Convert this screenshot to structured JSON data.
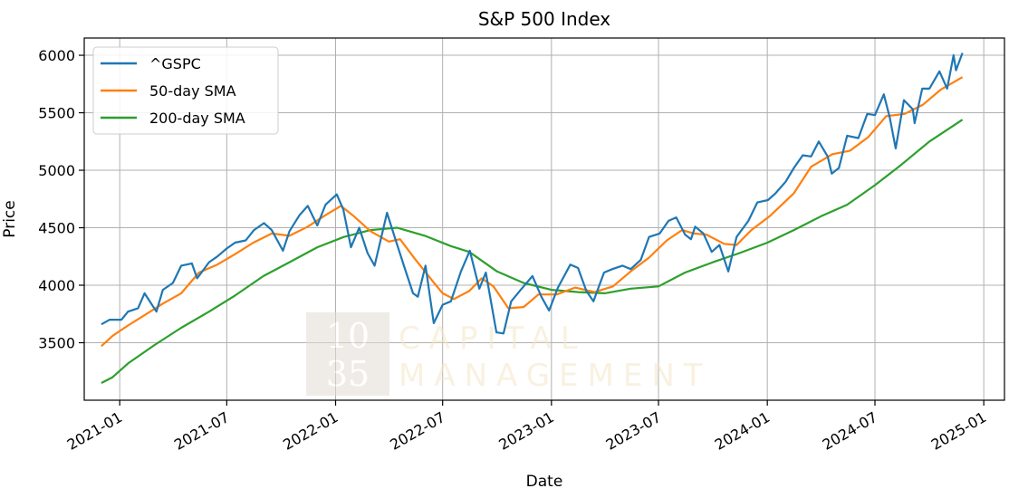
{
  "chart_data": {
    "type": "line",
    "title": "S&P 500 Index",
    "xlabel": "Date",
    "ylabel": "Price",
    "xlim": [
      "2020-11-02",
      "2025-02-05"
    ],
    "ylim": [
      3000,
      6150
    ],
    "yticks": [
      3500,
      4000,
      4500,
      5000,
      5500,
      6000
    ],
    "xticks": [
      "2021-01",
      "2021-07",
      "2022-01",
      "2022-07",
      "2023-01",
      "2023-07",
      "2024-01",
      "2024-07",
      "2025-01"
    ],
    "grid": true,
    "legend": "top-left",
    "series": [
      {
        "name": "^GSPC",
        "color": "#1f77b4",
        "points": [
          [
            "2020-12-01",
            3660
          ],
          [
            "2020-12-15",
            3700
          ],
          [
            "2021-01-04",
            3700
          ],
          [
            "2021-01-15",
            3770
          ],
          [
            "2021-02-01",
            3800
          ],
          [
            "2021-02-12",
            3930
          ],
          [
            "2021-03-04",
            3770
          ],
          [
            "2021-03-15",
            3960
          ],
          [
            "2021-04-01",
            4020
          ],
          [
            "2021-04-15",
            4170
          ],
          [
            "2021-05-03",
            4190
          ],
          [
            "2021-05-12",
            4060
          ],
          [
            "2021-06-01",
            4200
          ],
          [
            "2021-06-15",
            4250
          ],
          [
            "2021-07-01",
            4320
          ],
          [
            "2021-07-15",
            4370
          ],
          [
            "2021-08-02",
            4390
          ],
          [
            "2021-08-16",
            4480
          ],
          [
            "2021-09-02",
            4540
          ],
          [
            "2021-09-15",
            4480
          ],
          [
            "2021-10-04",
            4300
          ],
          [
            "2021-10-15",
            4470
          ],
          [
            "2021-11-01",
            4610
          ],
          [
            "2021-11-15",
            4690
          ],
          [
            "2021-12-01",
            4520
          ],
          [
            "2021-12-15",
            4700
          ],
          [
            "2022-01-03",
            4790
          ],
          [
            "2022-01-14",
            4660
          ],
          [
            "2022-01-27",
            4330
          ],
          [
            "2022-02-10",
            4500
          ],
          [
            "2022-02-24",
            4280
          ],
          [
            "2022-03-08",
            4170
          ],
          [
            "2022-03-29",
            4630
          ],
          [
            "2022-04-12",
            4400
          ],
          [
            "2022-04-29",
            4130
          ],
          [
            "2022-05-12",
            3930
          ],
          [
            "2022-05-20",
            3900
          ],
          [
            "2022-06-02",
            4170
          ],
          [
            "2022-06-16",
            3670
          ],
          [
            "2022-07-01",
            3830
          ],
          [
            "2022-07-15",
            3860
          ],
          [
            "2022-08-01",
            4120
          ],
          [
            "2022-08-16",
            4300
          ],
          [
            "2022-09-01",
            3970
          ],
          [
            "2022-09-12",
            4110
          ],
          [
            "2022-09-30",
            3590
          ],
          [
            "2022-10-12",
            3580
          ],
          [
            "2022-10-25",
            3860
          ],
          [
            "2022-11-10",
            3960
          ],
          [
            "2022-11-30",
            4080
          ],
          [
            "2022-12-15",
            3900
          ],
          [
            "2022-12-28",
            3780
          ],
          [
            "2023-01-12",
            3980
          ],
          [
            "2023-02-02",
            4180
          ],
          [
            "2023-02-15",
            4150
          ],
          [
            "2023-03-01",
            3950
          ],
          [
            "2023-03-13",
            3860
          ],
          [
            "2023-03-31",
            4110
          ],
          [
            "2023-04-14",
            4140
          ],
          [
            "2023-05-01",
            4170
          ],
          [
            "2023-05-15",
            4140
          ],
          [
            "2023-06-01",
            4220
          ],
          [
            "2023-06-15",
            4420
          ],
          [
            "2023-07-03",
            4450
          ],
          [
            "2023-07-18",
            4560
          ],
          [
            "2023-07-31",
            4590
          ],
          [
            "2023-08-15",
            4440
          ],
          [
            "2023-08-25",
            4400
          ],
          [
            "2023-09-01",
            4510
          ],
          [
            "2023-09-15",
            4450
          ],
          [
            "2023-09-29",
            4290
          ],
          [
            "2023-10-12",
            4350
          ],
          [
            "2023-10-27",
            4120
          ],
          [
            "2023-11-10",
            4420
          ],
          [
            "2023-11-30",
            4560
          ],
          [
            "2023-12-15",
            4720
          ],
          [
            "2024-01-02",
            4740
          ],
          [
            "2024-01-15",
            4800
          ],
          [
            "2024-02-01",
            4900
          ],
          [
            "2024-02-15",
            5020
          ],
          [
            "2024-03-01",
            5130
          ],
          [
            "2024-03-15",
            5120
          ],
          [
            "2024-03-28",
            5250
          ],
          [
            "2024-04-12",
            5120
          ],
          [
            "2024-04-19",
            4970
          ],
          [
            "2024-05-01",
            5020
          ],
          [
            "2024-05-15",
            5300
          ],
          [
            "2024-06-03",
            5280
          ],
          [
            "2024-06-18",
            5490
          ],
          [
            "2024-07-01",
            5480
          ],
          [
            "2024-07-16",
            5660
          ],
          [
            "2024-07-26",
            5460
          ],
          [
            "2024-08-05",
            5190
          ],
          [
            "2024-08-19",
            5610
          ],
          [
            "2024-09-03",
            5530
          ],
          [
            "2024-09-06",
            5410
          ],
          [
            "2024-09-19",
            5710
          ],
          [
            "2024-10-01",
            5710
          ],
          [
            "2024-10-18",
            5860
          ],
          [
            "2024-10-31",
            5710
          ],
          [
            "2024-11-11",
            6000
          ],
          [
            "2024-11-15",
            5870
          ],
          [
            "2024-11-26",
            6020
          ]
        ]
      },
      {
        "name": "50-day SMA",
        "color": "#ff7f0e",
        "points": [
          [
            "2020-12-01",
            3470
          ],
          [
            "2020-12-20",
            3560
          ],
          [
            "2021-01-15",
            3650
          ],
          [
            "2021-02-15",
            3750
          ],
          [
            "2021-03-15",
            3840
          ],
          [
            "2021-04-15",
            3930
          ],
          [
            "2021-05-15",
            4110
          ],
          [
            "2021-06-15",
            4180
          ],
          [
            "2021-07-15",
            4270
          ],
          [
            "2021-08-15",
            4370
          ],
          [
            "2021-09-15",
            4450
          ],
          [
            "2021-10-15",
            4430
          ],
          [
            "2021-11-15",
            4510
          ],
          [
            "2021-12-15",
            4610
          ],
          [
            "2022-01-10",
            4690
          ],
          [
            "2022-02-01",
            4600
          ],
          [
            "2022-03-01",
            4470
          ],
          [
            "2022-04-01",
            4380
          ],
          [
            "2022-04-20",
            4400
          ],
          [
            "2022-05-15",
            4230
          ],
          [
            "2022-06-15",
            4030
          ],
          [
            "2022-07-01",
            3930
          ],
          [
            "2022-07-20",
            3880
          ],
          [
            "2022-08-15",
            3950
          ],
          [
            "2022-09-05",
            4060
          ],
          [
            "2022-09-25",
            3990
          ],
          [
            "2022-10-20",
            3800
          ],
          [
            "2022-11-15",
            3810
          ],
          [
            "2022-12-10",
            3920
          ],
          [
            "2023-01-10",
            3920
          ],
          [
            "2023-02-10",
            3980
          ],
          [
            "2023-03-15",
            3940
          ],
          [
            "2023-04-15",
            3990
          ],
          [
            "2023-05-15",
            4120
          ],
          [
            "2023-06-15",
            4240
          ],
          [
            "2023-07-15",
            4390
          ],
          [
            "2023-08-10",
            4480
          ],
          [
            "2023-08-30",
            4450
          ],
          [
            "2023-09-20",
            4440
          ],
          [
            "2023-10-20",
            4360
          ],
          [
            "2023-11-10",
            4350
          ],
          [
            "2023-12-05",
            4480
          ],
          [
            "2024-01-05",
            4600
          ],
          [
            "2024-02-15",
            4800
          ],
          [
            "2024-03-15",
            5030
          ],
          [
            "2024-04-20",
            5140
          ],
          [
            "2024-05-20",
            5170
          ],
          [
            "2024-06-20",
            5290
          ],
          [
            "2024-07-20",
            5470
          ],
          [
            "2024-08-20",
            5490
          ],
          [
            "2024-09-20",
            5570
          ],
          [
            "2024-10-20",
            5700
          ],
          [
            "2024-11-26",
            5810
          ]
        ]
      },
      {
        "name": "200-day SMA",
        "color": "#2ca02c",
        "points": [
          [
            "2020-12-01",
            3150
          ],
          [
            "2020-12-20",
            3200
          ],
          [
            "2021-01-15",
            3320
          ],
          [
            "2021-03-01",
            3480
          ],
          [
            "2021-04-15",
            3630
          ],
          [
            "2021-06-01",
            3770
          ],
          [
            "2021-07-15",
            3910
          ],
          [
            "2021-09-01",
            4080
          ],
          [
            "2021-10-15",
            4200
          ],
          [
            "2021-12-01",
            4330
          ],
          [
            "2022-01-15",
            4420
          ],
          [
            "2022-03-01",
            4480
          ],
          [
            "2022-04-15",
            4500
          ],
          [
            "2022-06-01",
            4430
          ],
          [
            "2022-07-15",
            4340
          ],
          [
            "2022-08-15",
            4290
          ],
          [
            "2022-10-01",
            4120
          ],
          [
            "2022-11-15",
            4020
          ],
          [
            "2023-01-01",
            3960
          ],
          [
            "2023-02-15",
            3940
          ],
          [
            "2023-04-01",
            3930
          ],
          [
            "2023-05-15",
            3970
          ],
          [
            "2023-07-01",
            3990
          ],
          [
            "2023-08-15",
            4110
          ],
          [
            "2023-10-01",
            4200
          ],
          [
            "2023-11-15",
            4280
          ],
          [
            "2024-01-01",
            4370
          ],
          [
            "2024-02-15",
            4480
          ],
          [
            "2024-04-01",
            4600
          ],
          [
            "2024-05-15",
            4700
          ],
          [
            "2024-07-01",
            4870
          ],
          [
            "2024-08-15",
            5050
          ],
          [
            "2024-10-01",
            5250
          ],
          [
            "2024-11-26",
            5440
          ]
        ]
      }
    ]
  },
  "watermark": {
    "number_top": "10",
    "number_bottom": "35",
    "line1": "CAPITAL",
    "line2": "MANAGEMENT"
  }
}
